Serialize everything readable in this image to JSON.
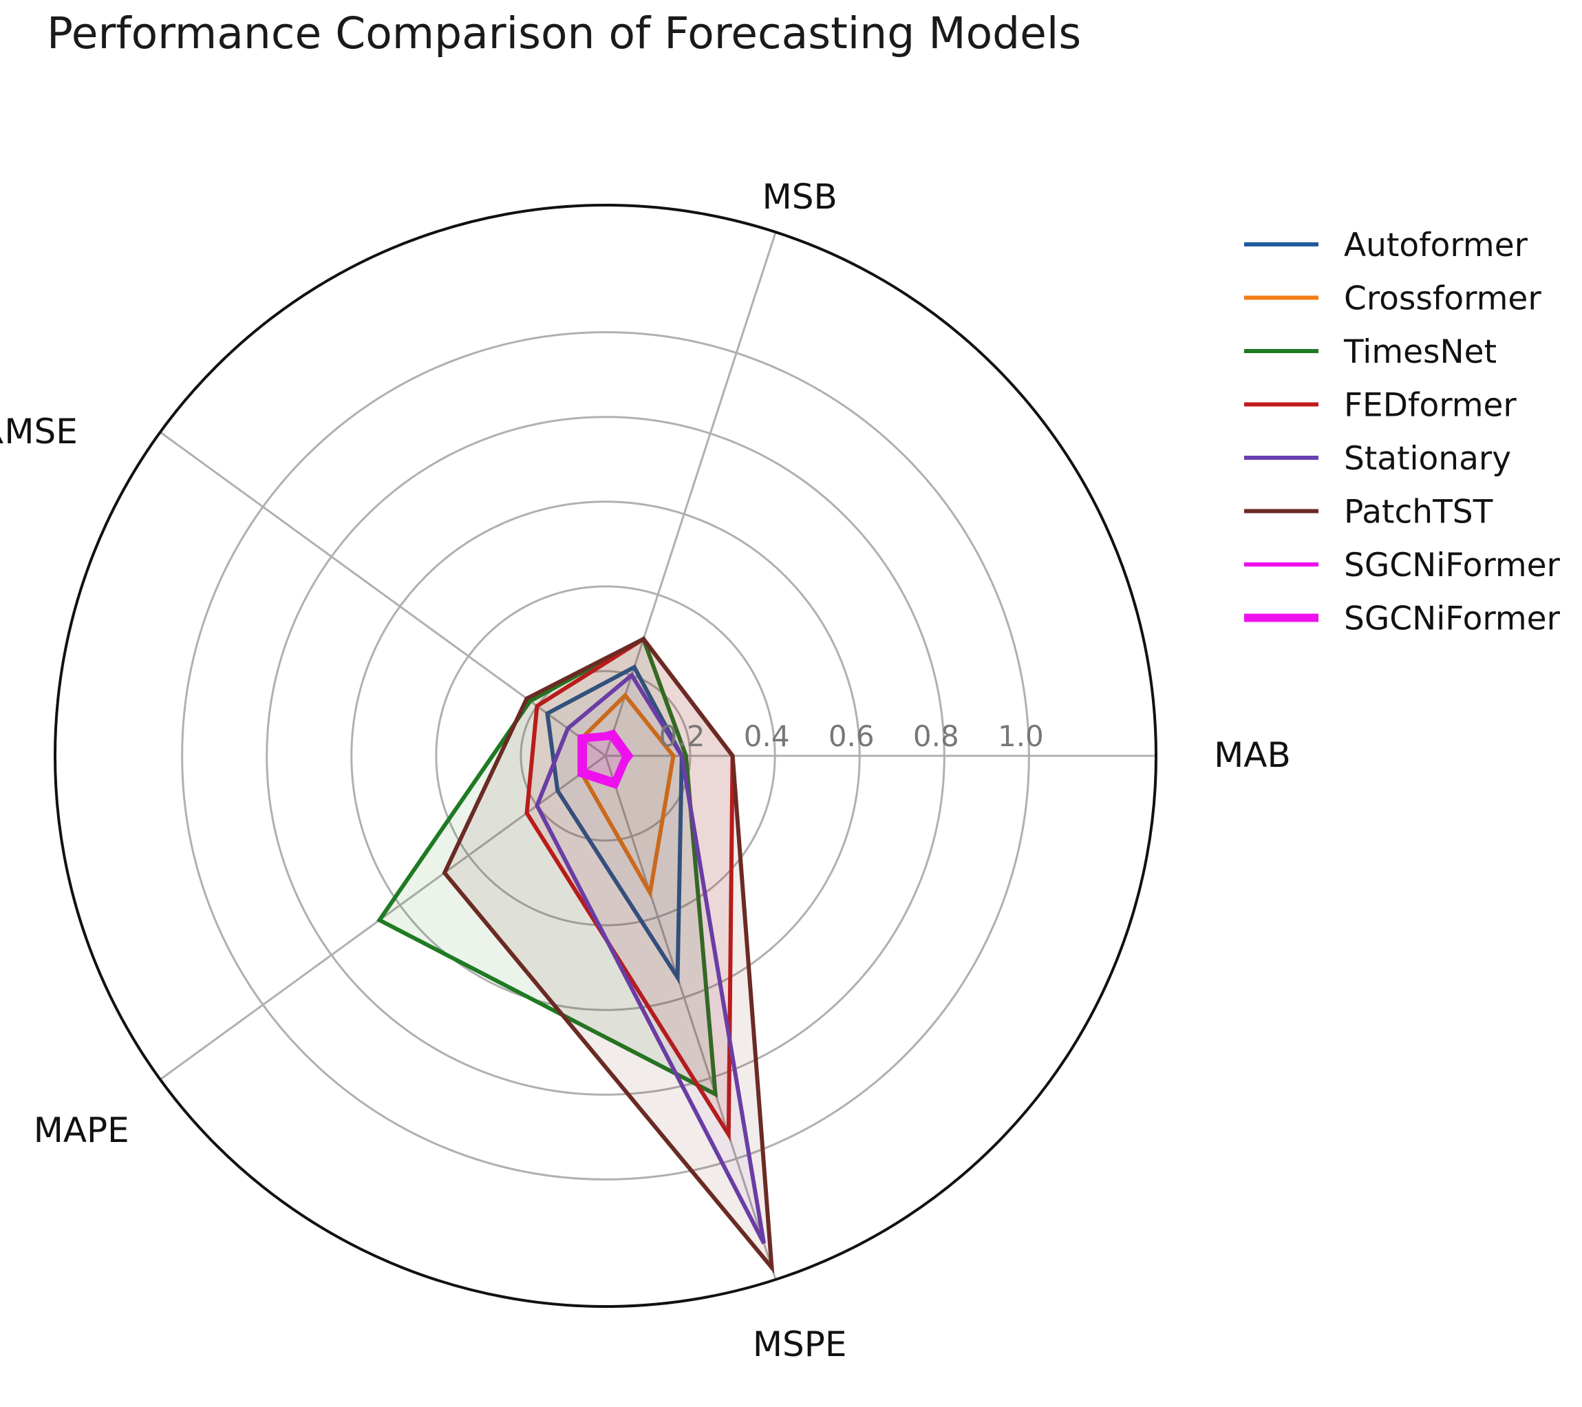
{
  "chart_data": {
    "type": "radar",
    "title": "Performance Comparison of Forecasting Models",
    "axes": [
      "MAB",
      "MSB",
      "RMSE",
      "MAPE",
      "MSPE"
    ],
    "rlim": [
      0,
      1.3
    ],
    "rticks": [
      "0.2",
      "0.4",
      "0.6",
      "0.8",
      "1.0"
    ],
    "rtick_values": [
      0.2,
      0.4,
      0.6,
      0.8,
      1.0
    ],
    "grid": true,
    "legend_position": "right",
    "series": [
      {
        "name": "Autoformer",
        "color": "#1f5a9c",
        "values": [
          0.18,
          0.22,
          0.17,
          0.14,
          0.55
        ],
        "width": 2,
        "fill": false
      },
      {
        "name": "Crossformer",
        "color": "#f07d16",
        "values": [
          0.16,
          0.15,
          0.07,
          0.07,
          0.34
        ],
        "width": 2,
        "fill": false
      },
      {
        "name": "TimesNet",
        "color": "#1f7a23",
        "values": [
          0.19,
          0.29,
          0.22,
          0.66,
          0.84
        ],
        "width": 2,
        "fill": true
      },
      {
        "name": "FEDformer",
        "color": "#c01b1b",
        "values": [
          0.3,
          0.29,
          0.2,
          0.23,
          0.94
        ],
        "width": 2,
        "fill": true
      },
      {
        "name": "Stationary",
        "color": "#6a3fb2",
        "values": [
          0.18,
          0.2,
          0.11,
          0.2,
          1.21
        ],
        "width": 2,
        "fill": false
      },
      {
        "name": "PatchTST",
        "color": "#6b2a24",
        "values": [
          0.3,
          0.29,
          0.23,
          0.47,
          1.27
        ],
        "width": 2,
        "fill": true
      },
      {
        "name": "SGCNiFormer",
        "color": "#ee11ee",
        "values": [
          0.06,
          0.06,
          0.06,
          0.06,
          0.06
        ],
        "width": 2,
        "fill": false
      },
      {
        "name": "SGCNiFormer",
        "color": "#ee11ee",
        "values": [
          0.05,
          0.05,
          0.07,
          0.07,
          0.07
        ],
        "width": 4,
        "fill": true
      }
    ]
  }
}
